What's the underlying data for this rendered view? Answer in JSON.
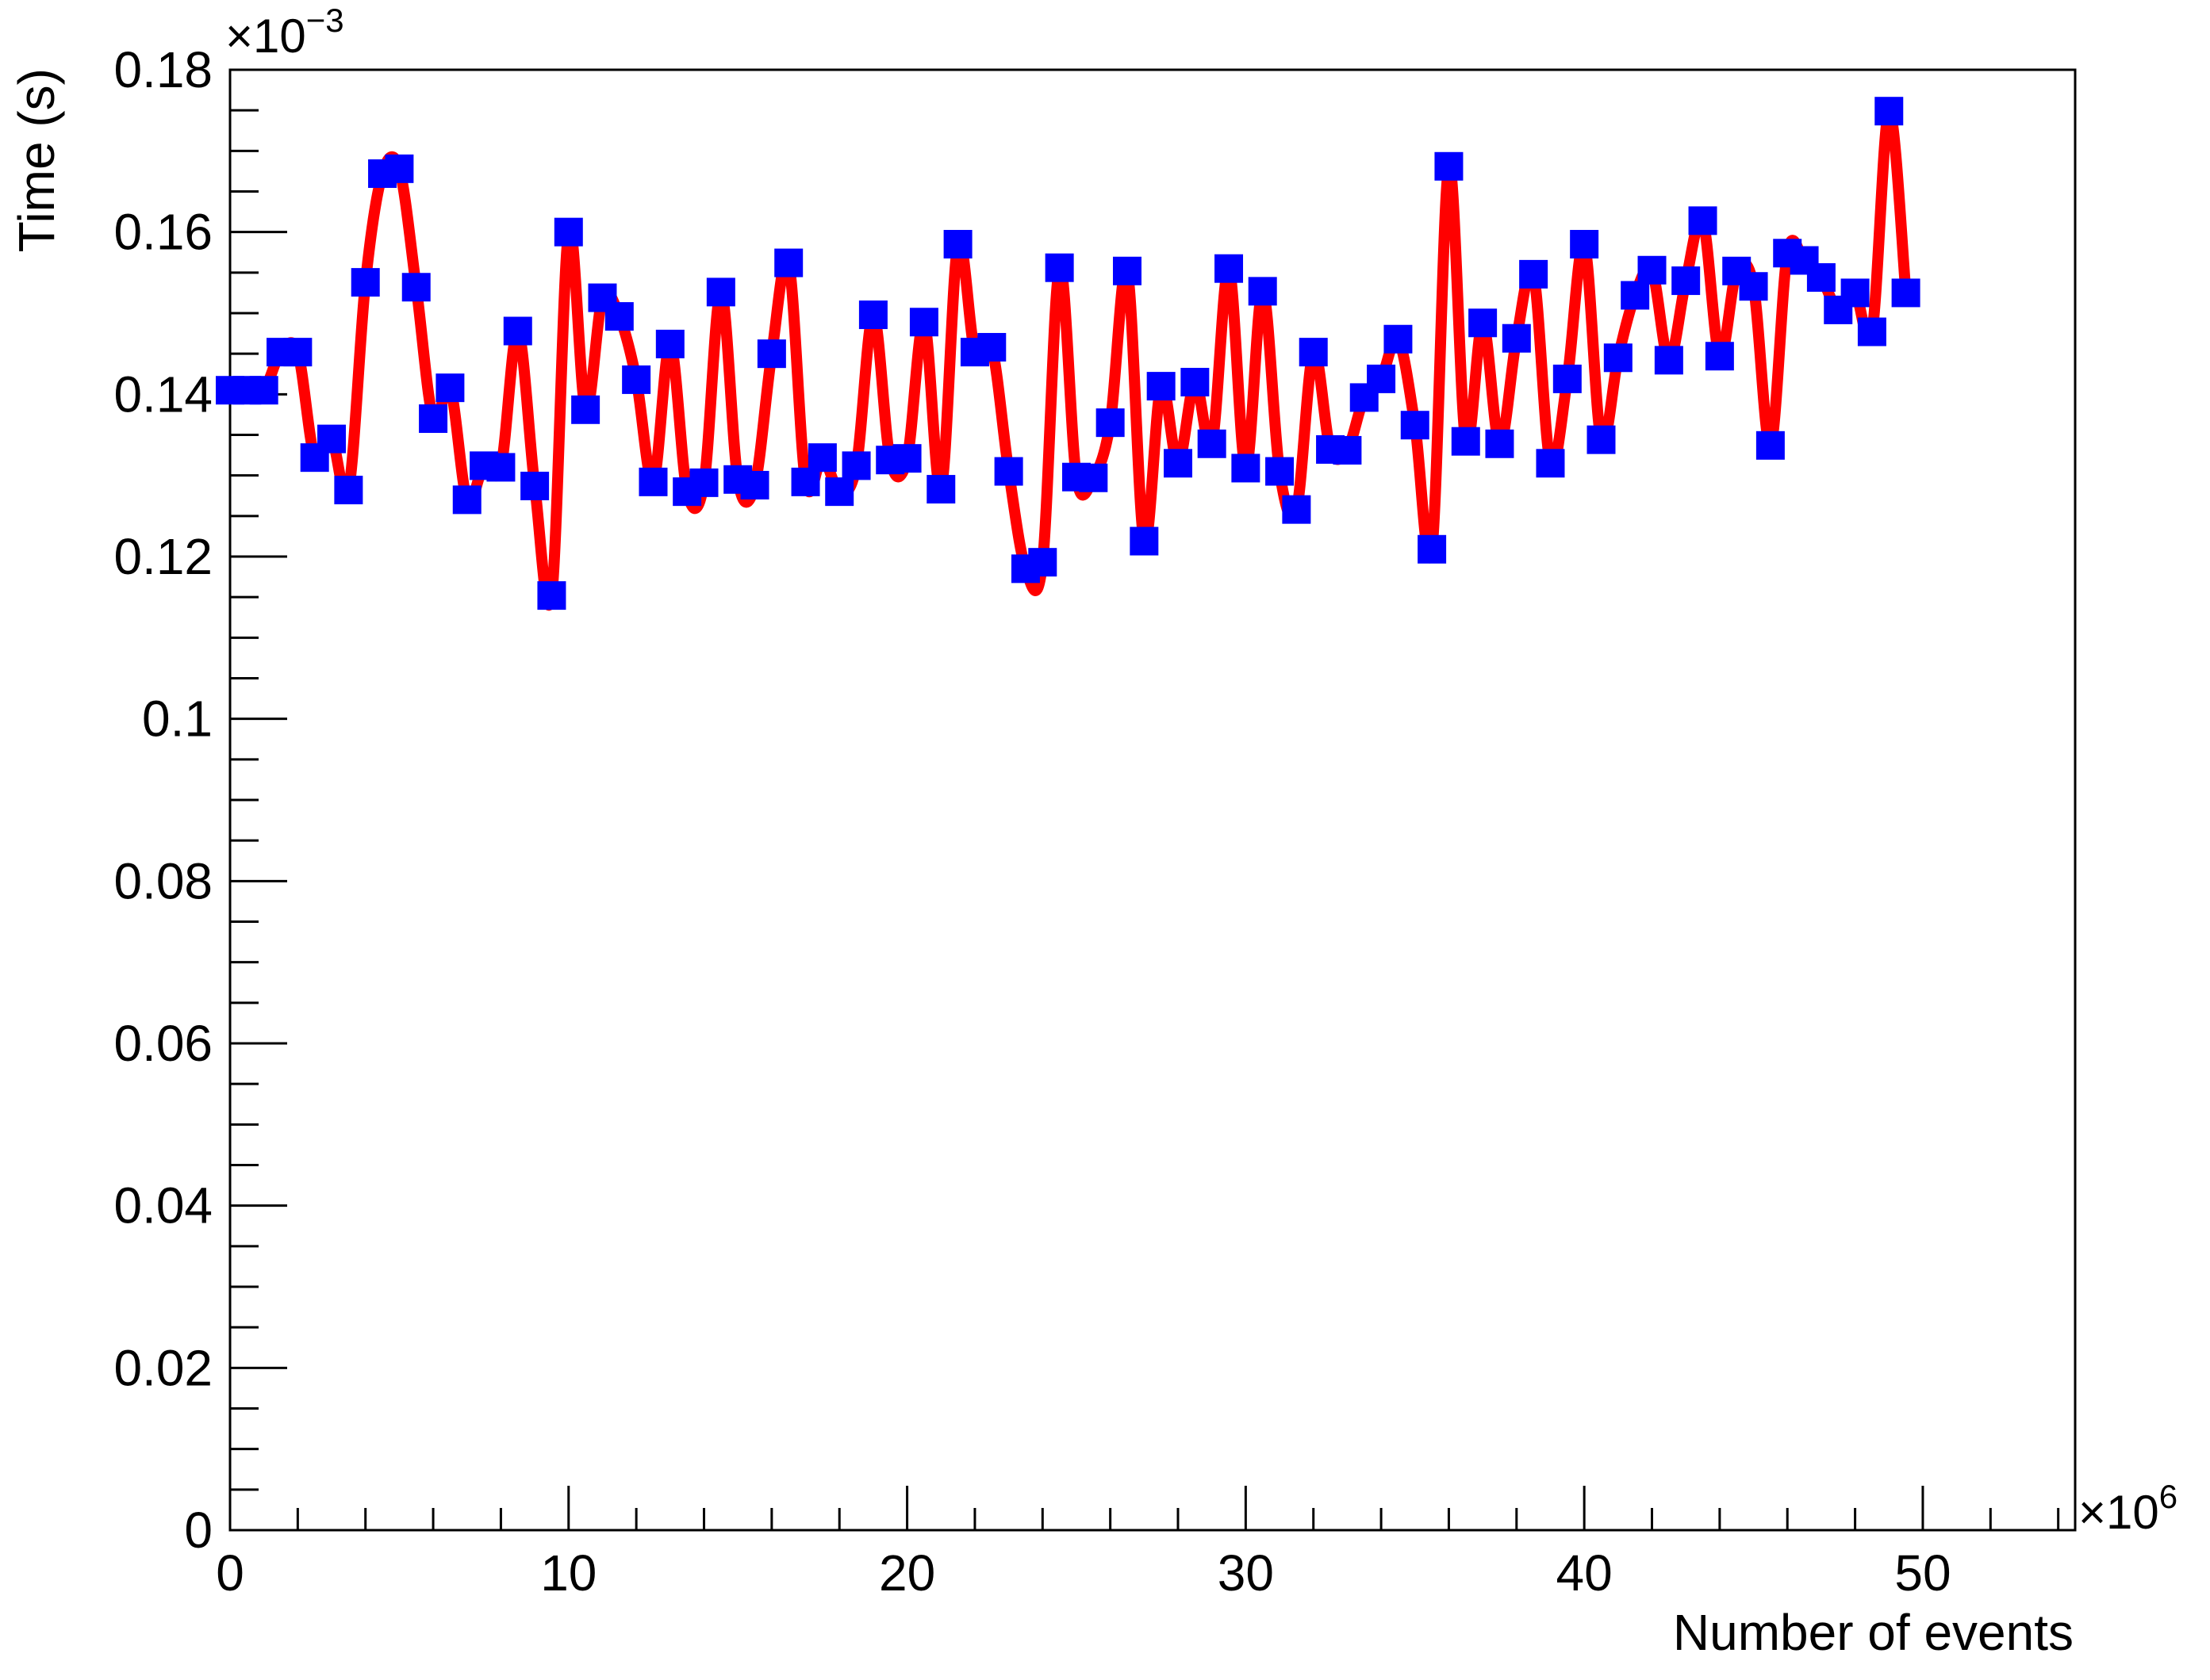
{
  "chart_data": {
    "type": "line",
    "title": "",
    "xlabel": "Number of events",
    "ylabel": "Time (s)",
    "x_multiplier_label": "×10",
    "x_multiplier_exp": "6",
    "y_multiplier_label": "×10",
    "y_multiplier_exp": "−3",
    "xlim": [
      0,
      54.5
    ],
    "ylim": [
      0,
      0.18
    ],
    "x_ticks": [
      0,
      10,
      20,
      30,
      40,
      50
    ],
    "x_tick_labels": [
      "0",
      "10",
      "20",
      "30",
      "40",
      "50"
    ],
    "y_ticks": [
      0,
      0.02,
      0.04,
      0.06,
      0.08,
      0.1,
      0.12,
      0.14,
      0.16,
      0.18
    ],
    "y_tick_labels": [
      "0",
      "0.02",
      "0.04",
      "0.06",
      "0.08",
      "0.1",
      "0.12",
      "0.14",
      "0.16",
      "0.18"
    ],
    "grid": false,
    "line_color": "#ff0000",
    "marker_color": "#0000ff",
    "marker": "square",
    "x": [
      0.0,
      0.5,
      1.0,
      1.5,
      2.0,
      2.5,
      3.0,
      3.5,
      4.0,
      4.5,
      5.0,
      5.5,
      6.0,
      6.5,
      7.0,
      7.5,
      8.0,
      8.5,
      9.0,
      9.5,
      10.0,
      10.5,
      11.0,
      11.5,
      12.0,
      12.5,
      13.0,
      13.5,
      14.0,
      14.5,
      15.0,
      15.5,
      16.0,
      16.5,
      17.0,
      17.5,
      18.0,
      18.5,
      19.0,
      19.5,
      20.0,
      20.5,
      21.0,
      21.5,
      22.0,
      22.5,
      23.0,
      23.5,
      24.0,
      24.5,
      25.0,
      25.5,
      26.0,
      26.5,
      27.0,
      27.5,
      28.0,
      28.5,
      29.0,
      29.5,
      30.0,
      30.5,
      31.0,
      31.5,
      32.0,
      32.5,
      33.0,
      33.5,
      34.0,
      34.5,
      35.0,
      35.5,
      36.0,
      36.5,
      37.0,
      37.5,
      38.0,
      38.5,
      39.0,
      39.5,
      40.0,
      40.5,
      41.0,
      41.5,
      42.0,
      42.5,
      43.0,
      43.5,
      44.0,
      44.5,
      45.0,
      45.5,
      46.0,
      46.5,
      47.0,
      47.5,
      48.0,
      48.5,
      49.0,
      49.5
    ],
    "y": [
      0.1405,
      0.1405,
      0.1405,
      0.1452,
      0.1452,
      0.1322,
      0.1345,
      0.1282,
      0.1538,
      0.1672,
      0.1678,
      0.1532,
      0.137,
      0.1408,
      0.127,
      0.1312,
      0.131,
      0.1478,
      0.1287,
      0.1152,
      0.16,
      0.1381,
      0.1519,
      0.1496,
      0.1418,
      0.1292,
      0.1462,
      0.128,
      0.1291,
      0.1526,
      0.1295,
      0.1288,
      0.145,
      0.1562,
      0.1292,
      0.1322,
      0.128,
      0.1312,
      0.1498,
      0.1319,
      0.1321,
      0.1489,
      0.1283,
      0.1585,
      0.1452,
      0.1458,
      0.1305,
      0.1185,
      0.1193,
      0.1556,
      0.1298,
      0.1297,
      0.1365,
      0.1552,
      0.1219,
      0.141,
      0.1315,
      0.1415,
      0.1339,
      0.1555,
      0.1309,
      0.1527,
      0.1305,
      0.1258,
      0.1452,
      0.1332,
      0.1331,
      0.1396,
      0.1419,
      0.1468,
      0.1362,
      0.1209,
      0.1681,
      0.1342,
      0.1488,
      0.1339,
      0.1469,
      0.1548,
      0.1315,
      0.1419,
      0.1585,
      0.1344,
      0.1445,
      0.1522,
      0.1553,
      0.1442,
      0.154,
      0.1614,
      0.1447,
      0.1552,
      0.1533,
      0.1337,
      0.1574,
      0.1565,
      0.1544,
      0.1504,
      0.1525,
      0.1477,
      0.1749,
      0.1525
    ]
  }
}
